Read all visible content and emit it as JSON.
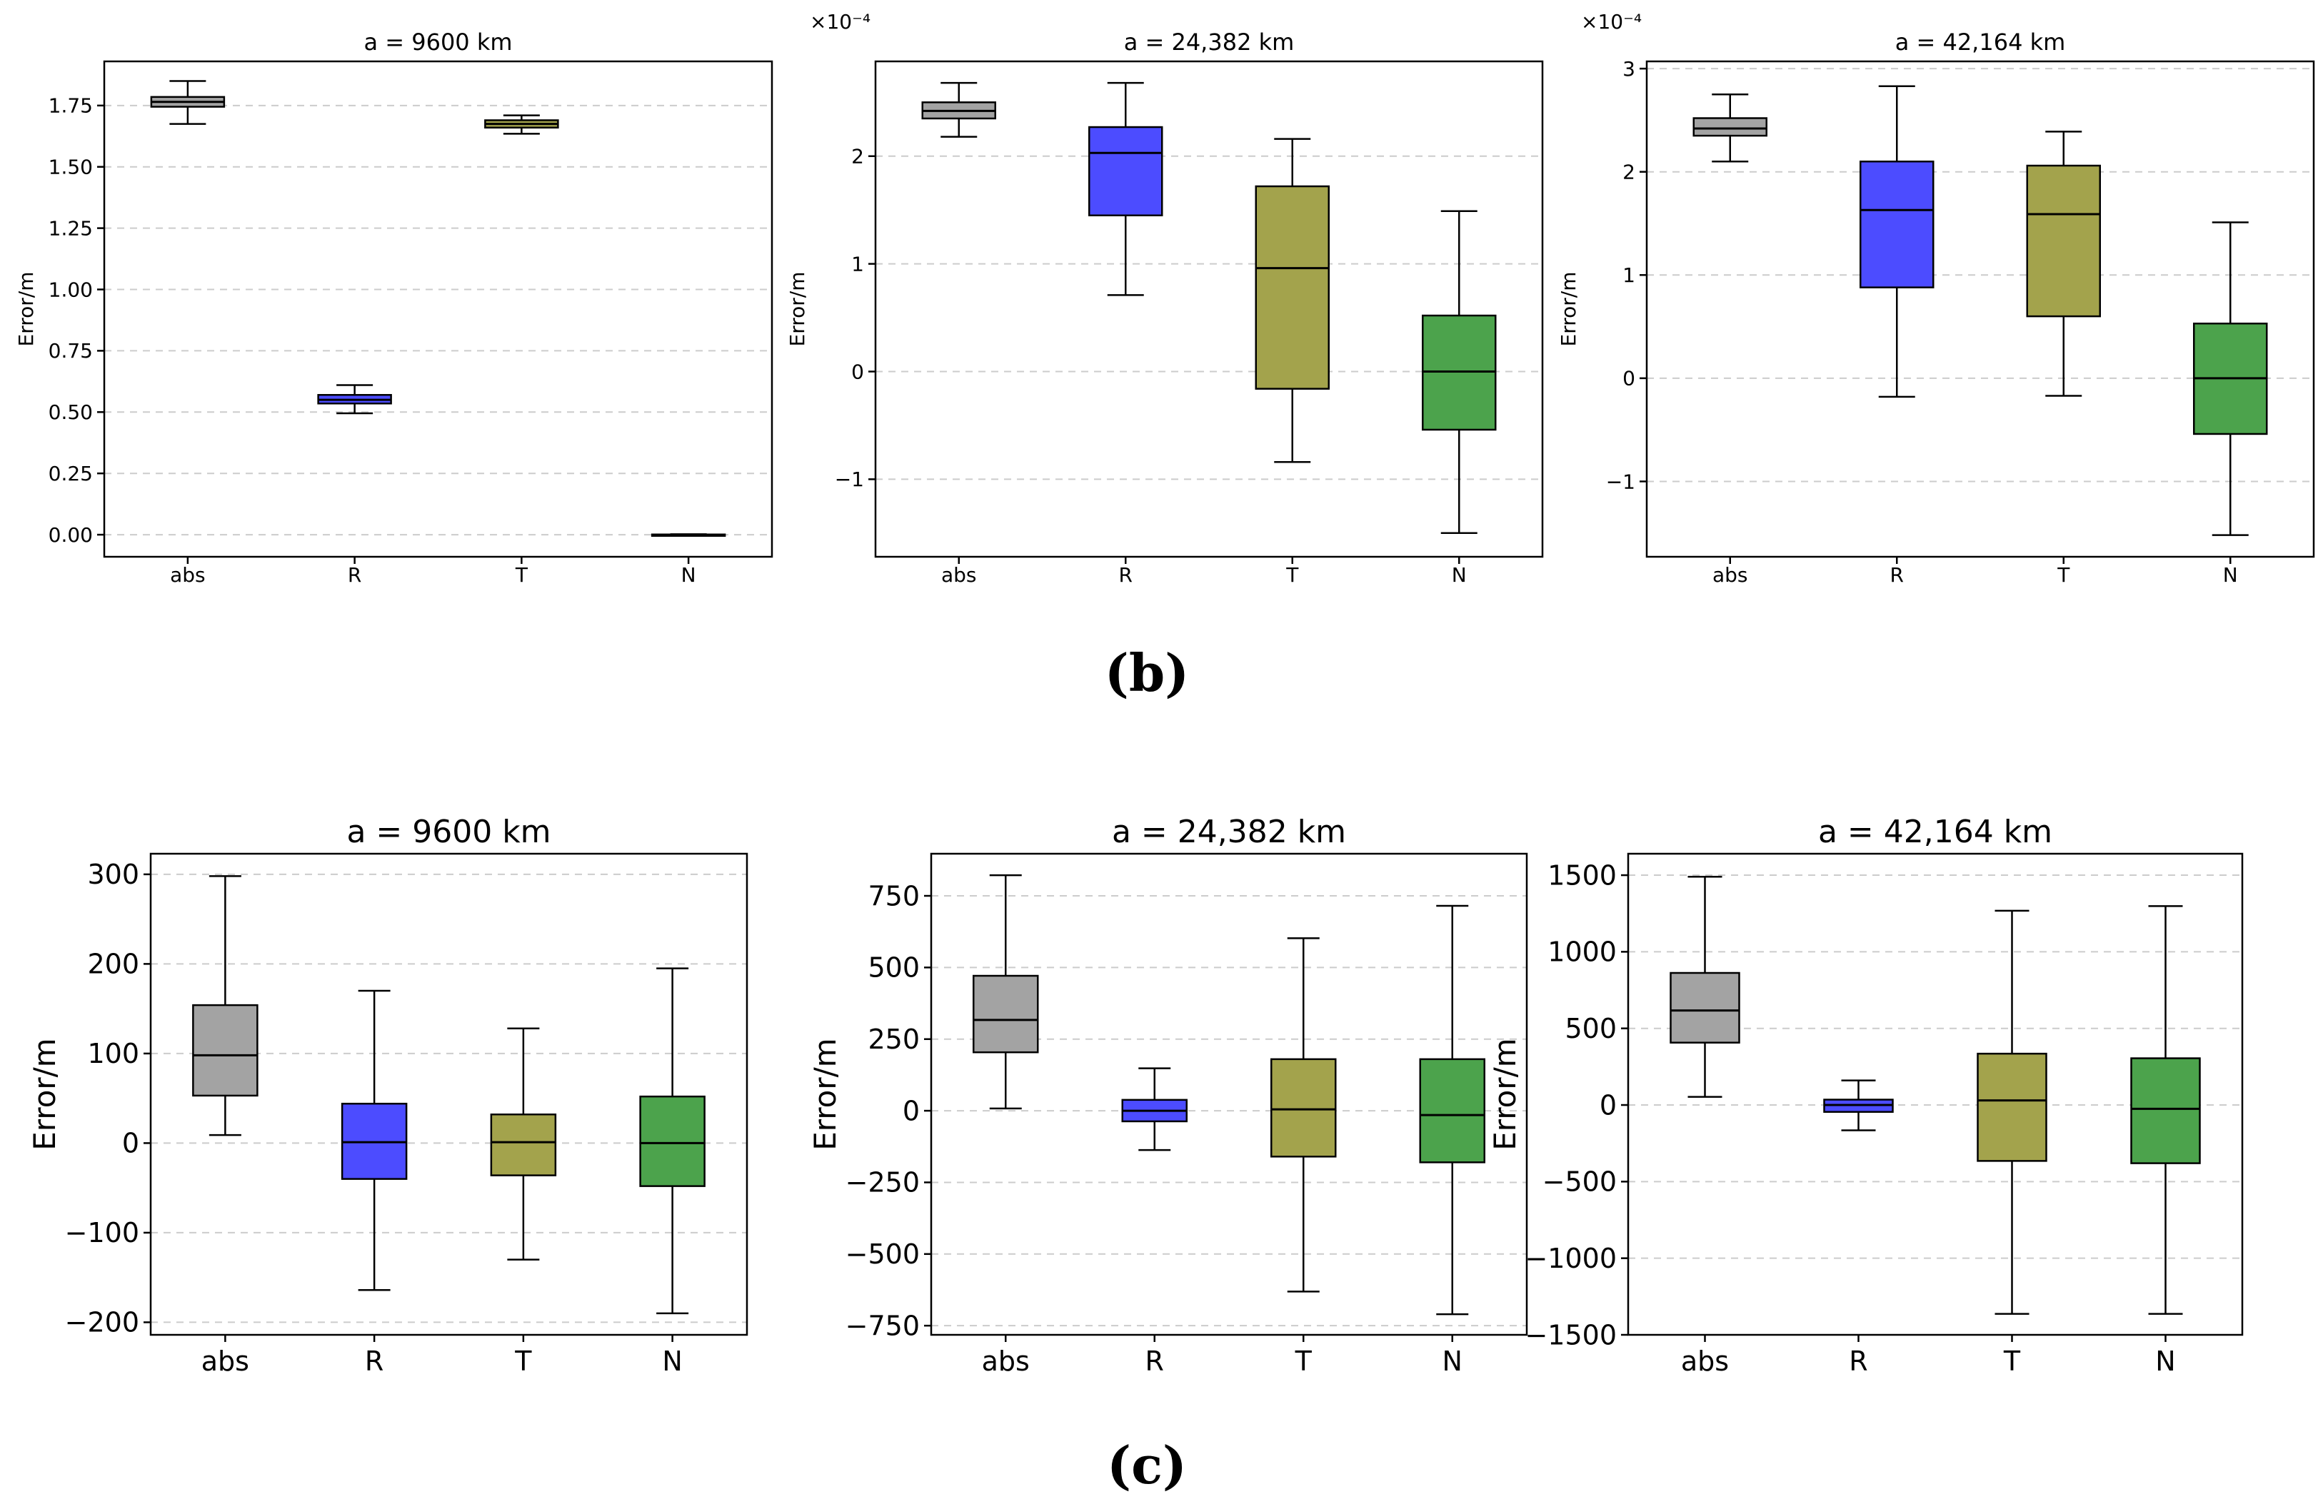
{
  "figure": {
    "panel_labels": [
      "(b)",
      "(c)"
    ]
  },
  "colors": {
    "abs": "#a3a3a3",
    "R": "#4c4cff",
    "T": "#a3a34c",
    "N": "#4ca34c",
    "median": "#000000",
    "grid": "#cccccc"
  },
  "chart_data": [
    {
      "type": "box",
      "title": "a = 9600 km",
      "ylabel": "Error/m",
      "multiplier": "",
      "categories": [
        "abs",
        "R",
        "T",
        "N"
      ],
      "ylim": [
        -0.09,
        1.93
      ],
      "ticks": [
        0.0,
        0.25,
        0.5,
        0.75,
        1.0,
        1.25,
        1.5,
        1.75
      ],
      "tick_labels": [
        "0.00",
        "0.25",
        "0.50",
        "0.75",
        "1.00",
        "1.25",
        "1.50",
        "1.75"
      ],
      "boxes": [
        {
          "whisker_low": 1.675,
          "q1": 1.745,
          "median": 1.765,
          "q3": 1.785,
          "whisker_high": 1.85
        },
        {
          "whisker_low": 0.495,
          "q1": 0.535,
          "median": 0.55,
          "q3": 0.57,
          "whisker_high": 0.61
        },
        {
          "whisker_low": 1.635,
          "q1": 1.66,
          "median": 1.675,
          "q3": 1.69,
          "whisker_high": 1.71
        },
        {
          "whisker_low": 0.0,
          "q1": 0.0,
          "median": 0.0,
          "q3": 0.001,
          "whisker_high": 0.002
        }
      ]
    },
    {
      "type": "box",
      "title": "a = 24,382 km",
      "ylabel": "Error/m",
      "multiplier": "×10⁻⁴",
      "categories": [
        "abs",
        "R",
        "T",
        "N"
      ],
      "ylim": [
        -1.72,
        2.88
      ],
      "ticks": [
        -1,
        0,
        1,
        2
      ],
      "tick_labels": [
        "−1",
        "0",
        "1",
        "2"
      ],
      "boxes": [
        {
          "whisker_low": 2.18,
          "q1": 2.35,
          "median": 2.42,
          "q3": 2.5,
          "whisker_high": 2.68
        },
        {
          "whisker_low": 0.71,
          "q1": 1.45,
          "median": 2.03,
          "q3": 2.27,
          "whisker_high": 2.68
        },
        {
          "whisker_low": -0.84,
          "q1": -0.16,
          "median": 0.96,
          "q3": 1.72,
          "whisker_high": 2.16
        },
        {
          "whisker_low": -1.5,
          "q1": -0.54,
          "median": 0.0,
          "q3": 0.52,
          "whisker_high": 1.49
        }
      ]
    },
    {
      "type": "box",
      "title": "a = 42,164 km",
      "ylabel": "Error/m",
      "multiplier": "×10⁻⁴",
      "categories": [
        "abs",
        "R",
        "T",
        "N"
      ],
      "ylim": [
        -1.73,
        3.07
      ],
      "ticks": [
        -1,
        0,
        1,
        2,
        3
      ],
      "tick_labels": [
        "−1",
        "0",
        "1",
        "2",
        "3"
      ],
      "boxes": [
        {
          "whisker_low": 2.1,
          "q1": 2.35,
          "median": 2.42,
          "q3": 2.52,
          "whisker_high": 2.75
        },
        {
          "whisker_low": -0.18,
          "q1": 0.88,
          "median": 1.63,
          "q3": 2.1,
          "whisker_high": 2.83
        },
        {
          "whisker_low": -0.17,
          "q1": 0.6,
          "median": 1.59,
          "q3": 2.06,
          "whisker_high": 2.39
        },
        {
          "whisker_low": -1.52,
          "q1": -0.54,
          "median": 0.0,
          "q3": 0.53,
          "whisker_high": 1.51
        }
      ]
    },
    {
      "type": "box",
      "title": "a = 9600 km",
      "ylabel": "Error/m",
      "multiplier": "",
      "categories": [
        "abs",
        "R",
        "T",
        "N"
      ],
      "ylim": [
        -214,
        323
      ],
      "ticks": [
        -200,
        -100,
        0,
        100,
        200,
        300
      ],
      "tick_labels": [
        "−200",
        "−100",
        "0",
        "100",
        "200",
        "300"
      ],
      "boxes": [
        {
          "whisker_low": 9,
          "q1": 53,
          "median": 98,
          "q3": 154,
          "whisker_high": 298
        },
        {
          "whisker_low": -164,
          "q1": -40,
          "median": 1,
          "q3": 44,
          "whisker_high": 170
        },
        {
          "whisker_low": -130,
          "q1": -36,
          "median": 1,
          "q3": 32,
          "whisker_high": 128
        },
        {
          "whisker_low": -190,
          "q1": -48,
          "median": 0,
          "q3": 52,
          "whisker_high": 195
        }
      ]
    },
    {
      "type": "box",
      "title": "a = 24,382 km",
      "ylabel": "Error/m",
      "multiplier": "",
      "categories": [
        "abs",
        "R",
        "T",
        "N"
      ],
      "ylim": [
        -782,
        897
      ],
      "ticks": [
        -750,
        -500,
        -250,
        0,
        250,
        500,
        750
      ],
      "tick_labels": [
        "−750",
        "−500",
        "−250",
        "0",
        "250",
        "500",
        "750"
      ],
      "boxes": [
        {
          "whisker_low": 8,
          "q1": 204,
          "median": 317,
          "q3": 471,
          "whisker_high": 822
        },
        {
          "whisker_low": -137,
          "q1": -37,
          "median": 0,
          "q3": 38,
          "whisker_high": 148
        },
        {
          "whisker_low": -631,
          "q1": -160,
          "median": 5,
          "q3": 180,
          "whisker_high": 602
        },
        {
          "whisker_low": -710,
          "q1": -180,
          "median": -15,
          "q3": 180,
          "whisker_high": 715
        }
      ]
    },
    {
      "type": "box",
      "title": "a = 42,164 km",
      "ylabel": "Error/m",
      "multiplier": "",
      "categories": [
        "abs",
        "R",
        "T",
        "N"
      ],
      "ylim": [
        -1500,
        1640
      ],
      "ticks": [
        -1500,
        -1000,
        -500,
        0,
        500,
        1000,
        1500
      ],
      "tick_labels": [
        "−1500",
        "−1000",
        "−500",
        "0",
        "500",
        "1000",
        "1500"
      ],
      "boxes": [
        {
          "whisker_low": 53,
          "q1": 407,
          "median": 617,
          "q3": 862,
          "whisker_high": 1490
        },
        {
          "whisker_low": -165,
          "q1": -45,
          "median": 0,
          "q3": 35,
          "whisker_high": 160
        },
        {
          "whisker_low": -1363,
          "q1": -365,
          "median": 30,
          "q3": 335,
          "whisker_high": 1268
        },
        {
          "whisker_low": -1363,
          "q1": -380,
          "median": -25,
          "q3": 305,
          "whisker_high": 1298
        }
      ]
    }
  ]
}
